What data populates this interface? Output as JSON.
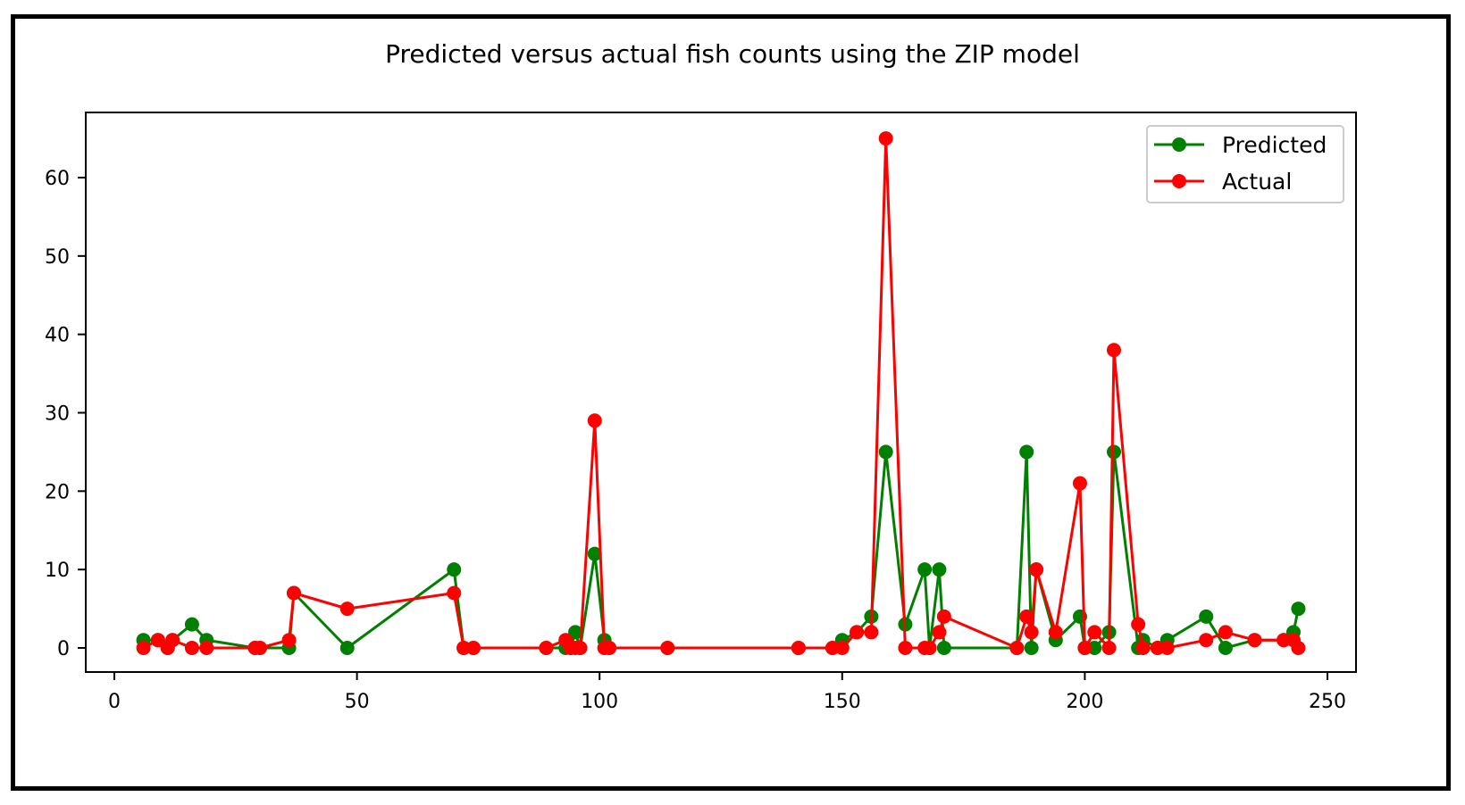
{
  "chart_data": {
    "type": "line",
    "title": "Predicted versus actual fish counts using the ZIP model",
    "xlabel": "",
    "ylabel": "",
    "xlim": [
      -6,
      256
    ],
    "ylim": [
      -3,
      68
    ],
    "xticks": [
      0,
      50,
      100,
      150,
      200,
      250
    ],
    "yticks": [
      0,
      10,
      20,
      30,
      40,
      50,
      60
    ],
    "grid": false,
    "legend_position": "upper right",
    "marker": "circle",
    "series": [
      {
        "name": "Predicted",
        "color": "#008000",
        "x": [
          6,
          9,
          11,
          12,
          16,
          19,
          29,
          30,
          36,
          37,
          48,
          70,
          72,
          74,
          89,
          93,
          94,
          95,
          96,
          99,
          101,
          102,
          114,
          141,
          148,
          150,
          153,
          156,
          159,
          163,
          167,
          168,
          170,
          171,
          186,
          188,
          189,
          190,
          194,
          199,
          200,
          202,
          205,
          206,
          211,
          212,
          215,
          217,
          225,
          229,
          235,
          241,
          243,
          244
        ],
        "values": [
          1,
          1,
          0,
          1,
          3,
          1,
          0,
          0,
          0,
          7,
          0,
          10,
          0,
          0,
          0,
          0,
          0,
          2,
          0,
          12,
          1,
          0,
          0,
          0,
          0,
          1,
          2,
          4,
          25,
          3,
          10,
          0,
          10,
          0,
          0,
          25,
          0,
          10,
          1,
          4,
          0,
          0,
          2,
          25,
          0,
          1,
          0,
          1,
          4,
          0,
          1,
          1,
          2,
          5
        ]
      },
      {
        "name": "Actual",
        "color": "#ff0000",
        "x": [
          6,
          9,
          11,
          12,
          16,
          19,
          29,
          30,
          36,
          37,
          48,
          70,
          72,
          74,
          89,
          93,
          94,
          95,
          96,
          99,
          101,
          102,
          114,
          141,
          148,
          150,
          153,
          156,
          159,
          163,
          167,
          168,
          170,
          171,
          186,
          188,
          189,
          190,
          194,
          199,
          200,
          202,
          205,
          206,
          211,
          212,
          215,
          217,
          225,
          229,
          235,
          241,
          243,
          244
        ],
        "values": [
          0,
          1,
          0,
          1,
          0,
          0,
          0,
          0,
          1,
          7,
          5,
          7,
          0,
          0,
          0,
          1,
          0,
          0,
          0,
          29,
          0,
          0,
          0,
          0,
          0,
          0,
          2,
          2,
          65,
          0,
          0,
          0,
          2,
          4,
          0,
          4,
          2,
          10,
          2,
          21,
          0,
          2,
          0,
          38,
          3,
          0,
          0,
          0,
          1,
          2,
          1,
          1,
          1,
          0
        ]
      }
    ]
  }
}
